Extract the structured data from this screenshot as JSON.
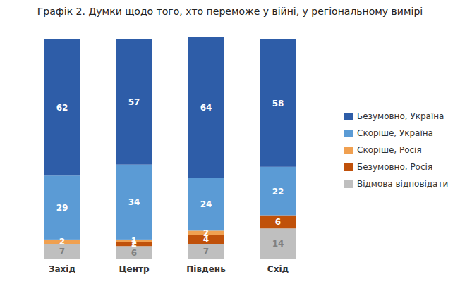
{
  "chart_data": {
    "type": "bar",
    "stacked": true,
    "title": "Графік 2. Думки щодо того, хто переможе у війні, у регіональному вимірі",
    "categories": [
      "Захід",
      "Центр",
      "Південь",
      "Схід"
    ],
    "series": [
      {
        "name": "Відмова відповідати",
        "color": "#BFBFBF",
        "values": [
          7,
          6,
          7,
          14
        ]
      },
      {
        "name": "Безумовно, Росія",
        "color": "#C0510A",
        "values": [
          0,
          2,
          4,
          6
        ]
      },
      {
        "name": "Скоріше, Росія",
        "color": "#F0A050",
        "values": [
          2,
          1,
          2,
          0
        ]
      },
      {
        "name": "Скоріше, Україна",
        "color": "#5B9BD5",
        "values": [
          29,
          34,
          24,
          22
        ]
      },
      {
        "name": "Безумовно, Україна",
        "color": "#2E5DA8",
        "values": [
          62,
          57,
          64,
          58
        ]
      }
    ],
    "ylim": [
      0,
      105
    ],
    "grid": false,
    "legend": "right",
    "data_labels": true,
    "tick_labels": "x"
  }
}
